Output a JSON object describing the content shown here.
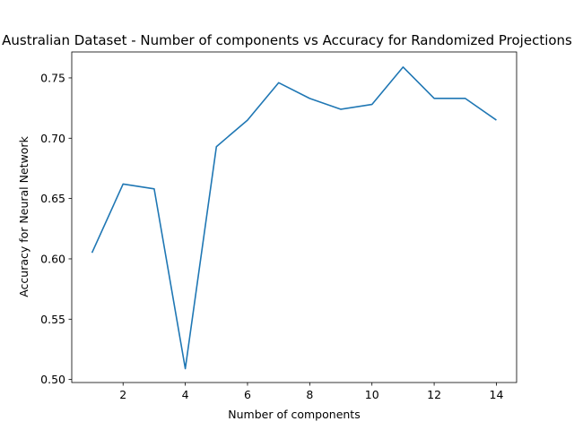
{
  "chart_data": {
    "type": "line",
    "title": "Australian Dataset - Number of components vs Accuracy for Randomized Projections",
    "xlabel": "Number of components",
    "ylabel": "Accuracy for Neural Network",
    "xlim": [
      0.35,
      14.65
    ],
    "ylim": [
      0.4975,
      0.7715
    ],
    "xticks": [
      2,
      4,
      6,
      8,
      10,
      12,
      14
    ],
    "yticks": [
      0.5,
      0.55,
      0.6,
      0.65,
      0.7,
      0.75
    ],
    "xtick_labels": [
      "2",
      "4",
      "6",
      "8",
      "10",
      "12",
      "14"
    ],
    "ytick_labels": [
      "0.50",
      "0.55",
      "0.60",
      "0.65",
      "0.70",
      "0.75"
    ],
    "grid": false,
    "legend": "none",
    "series": [
      {
        "color": "#1f77b4",
        "x": [
          1,
          2,
          3,
          4,
          5,
          6,
          7,
          8,
          9,
          10,
          11,
          12,
          13,
          14
        ],
        "y": [
          0.605,
          0.662,
          0.658,
          0.509,
          0.693,
          0.715,
          0.746,
          0.733,
          0.724,
          0.728,
          0.759,
          0.733,
          0.733,
          0.715
        ]
      }
    ]
  }
}
